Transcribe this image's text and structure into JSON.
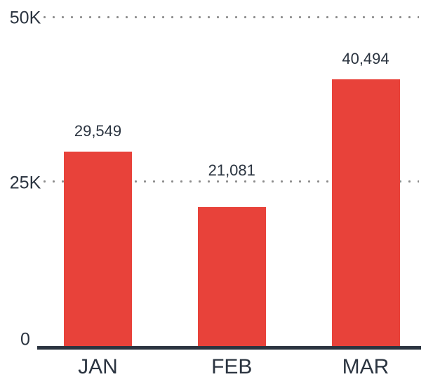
{
  "chart_data": {
    "type": "bar",
    "categories": [
      "JAN",
      "FEB",
      "MAR"
    ],
    "values": [
      29549,
      21081,
      40494
    ],
    "value_labels": [
      "29,549",
      "21,081",
      "40,494"
    ],
    "title": "",
    "xlabel": "",
    "ylabel": "",
    "ylim": [
      0,
      50000
    ],
    "yticks": [
      {
        "value": 0,
        "label": "0",
        "gridline": false
      },
      {
        "value": 25000,
        "label": "25K",
        "gridline": true
      },
      {
        "value": 50000,
        "label": "50K",
        "gridline": true
      }
    ],
    "gridline_style": "dotted",
    "legend": "none",
    "colors": {
      "bar": "#e8423a",
      "text": "#2b3440",
      "axis_line": "#2b3440",
      "gridline_dot": "#8c8c8c",
      "background": "#ffffff"
    }
  }
}
